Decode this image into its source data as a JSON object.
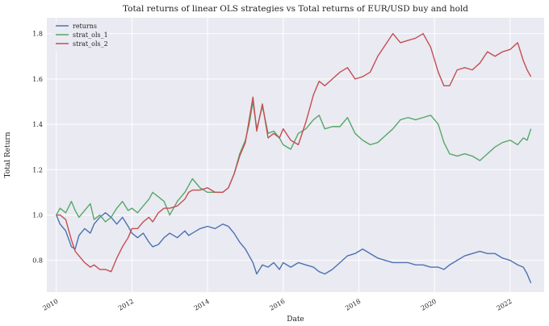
{
  "chart_data": {
    "type": "line",
    "title": "Total returns of linear OLS strategies vs Total returns of EUR/USD buy and hold",
    "xlabel": "Date",
    "ylabel": "Total Return",
    "xlim": [
      2009.75,
      2022.9
    ],
    "ylim": [
      0.66,
      1.87
    ],
    "xticks": [
      2010,
      2012,
      2014,
      2016,
      2018,
      2020,
      2022
    ],
    "xtick_labels": [
      "2010",
      "2012",
      "2014",
      "2016",
      "2018",
      "2020",
      "2022"
    ],
    "yticks": [
      0.8,
      1.0,
      1.2,
      1.4,
      1.6,
      1.8
    ],
    "ytick_labels": [
      "0.8",
      "1.0",
      "1.2",
      "1.4",
      "1.6",
      "1.8"
    ],
    "grid": true,
    "legend_position": "upper-left",
    "series": [
      {
        "name": "returns",
        "color": "#4c72b0",
        "x": [
          2010.0,
          2010.1,
          2010.25,
          2010.4,
          2010.5,
          2010.6,
          2010.75,
          2010.9,
          2011.0,
          2011.15,
          2011.3,
          2011.45,
          2011.6,
          2011.75,
          2011.9,
          2012.0,
          2012.15,
          2012.3,
          2012.45,
          2012.55,
          2012.7,
          2012.85,
          2013.0,
          2013.2,
          2013.4,
          2013.5,
          2013.6,
          2013.8,
          2014.0,
          2014.2,
          2014.4,
          2014.55,
          2014.7,
          2014.85,
          2015.0,
          2015.1,
          2015.2,
          2015.3,
          2015.45,
          2015.6,
          2015.75,
          2015.9,
          2016.0,
          2016.2,
          2016.4,
          2016.6,
          2016.8,
          2016.95,
          2017.1,
          2017.3,
          2017.5,
          2017.7,
          2017.9,
          2018.1,
          2018.3,
          2018.5,
          2018.7,
          2018.9,
          2019.1,
          2019.3,
          2019.5,
          2019.7,
          2019.9,
          2020.1,
          2020.25,
          2020.4,
          2020.6,
          2020.8,
          2021.0,
          2021.2,
          2021.4,
          2021.6,
          2021.8,
          2022.0,
          2022.2,
          2022.35,
          2022.45,
          2022.55
        ],
        "y": [
          1.0,
          0.96,
          0.93,
          0.86,
          0.85,
          0.91,
          0.94,
          0.92,
          0.96,
          0.99,
          1.01,
          0.99,
          0.96,
          0.99,
          0.95,
          0.92,
          0.9,
          0.92,
          0.88,
          0.86,
          0.87,
          0.9,
          0.92,
          0.9,
          0.93,
          0.91,
          0.92,
          0.94,
          0.95,
          0.94,
          0.96,
          0.95,
          0.92,
          0.88,
          0.85,
          0.82,
          0.79,
          0.74,
          0.78,
          0.77,
          0.79,
          0.76,
          0.79,
          0.77,
          0.79,
          0.78,
          0.77,
          0.75,
          0.74,
          0.76,
          0.79,
          0.82,
          0.83,
          0.85,
          0.83,
          0.81,
          0.8,
          0.79,
          0.79,
          0.79,
          0.78,
          0.78,
          0.77,
          0.77,
          0.76,
          0.78,
          0.8,
          0.82,
          0.83,
          0.84,
          0.83,
          0.83,
          0.81,
          0.8,
          0.78,
          0.77,
          0.74,
          0.7
        ]
      },
      {
        "name": "strat_ols_1",
        "color": "#55a868",
        "x": [
          2010.0,
          2010.1,
          2010.25,
          2010.4,
          2010.5,
          2010.6,
          2010.75,
          2010.9,
          2011.0,
          2011.15,
          2011.3,
          2011.45,
          2011.6,
          2011.75,
          2011.9,
          2012.0,
          2012.15,
          2012.3,
          2012.45,
          2012.55,
          2012.7,
          2012.85,
          2013.0,
          2013.2,
          2013.4,
          2013.5,
          2013.6,
          2013.8,
          2014.0,
          2014.2,
          2014.4,
          2014.55,
          2014.7,
          2014.85,
          2015.0,
          2015.1,
          2015.2,
          2015.3,
          2015.45,
          2015.6,
          2015.75,
          2015.9,
          2016.0,
          2016.2,
          2016.4,
          2016.6,
          2016.8,
          2016.95,
          2017.1,
          2017.3,
          2017.5,
          2017.7,
          2017.9,
          2018.1,
          2018.3,
          2018.5,
          2018.7,
          2018.9,
          2019.1,
          2019.3,
          2019.5,
          2019.7,
          2019.9,
          2020.1,
          2020.25,
          2020.4,
          2020.6,
          2020.8,
          2021.0,
          2021.2,
          2021.4,
          2021.6,
          2021.8,
          2022.0,
          2022.2,
          2022.35,
          2022.45,
          2022.55
        ],
        "y": [
          1.0,
          1.03,
          1.01,
          1.06,
          1.02,
          0.99,
          1.02,
          1.05,
          0.98,
          1.0,
          0.97,
          0.99,
          1.03,
          1.06,
          1.02,
          1.03,
          1.01,
          1.04,
          1.07,
          1.1,
          1.08,
          1.06,
          1.0,
          1.06,
          1.1,
          1.13,
          1.16,
          1.12,
          1.1,
          1.1,
          1.1,
          1.12,
          1.18,
          1.27,
          1.33,
          1.4,
          1.5,
          1.38,
          1.48,
          1.36,
          1.37,
          1.34,
          1.31,
          1.29,
          1.36,
          1.38,
          1.42,
          1.44,
          1.38,
          1.39,
          1.39,
          1.43,
          1.36,
          1.33,
          1.31,
          1.32,
          1.35,
          1.38,
          1.42,
          1.43,
          1.42,
          1.43,
          1.44,
          1.4,
          1.32,
          1.27,
          1.26,
          1.27,
          1.26,
          1.24,
          1.27,
          1.3,
          1.32,
          1.33,
          1.31,
          1.34,
          1.33,
          1.38
        ]
      },
      {
        "name": "strat_ols_2",
        "color": "#c44e52",
        "x": [
          2010.0,
          2010.1,
          2010.25,
          2010.4,
          2010.5,
          2010.6,
          2010.75,
          2010.9,
          2011.0,
          2011.15,
          2011.3,
          2011.45,
          2011.6,
          2011.75,
          2011.9,
          2012.0,
          2012.15,
          2012.3,
          2012.45,
          2012.55,
          2012.7,
          2012.85,
          2013.0,
          2013.2,
          2013.4,
          2013.5,
          2013.6,
          2013.8,
          2014.0,
          2014.2,
          2014.4,
          2014.55,
          2014.7,
          2014.85,
          2015.0,
          2015.1,
          2015.2,
          2015.3,
          2015.45,
          2015.6,
          2015.75,
          2015.9,
          2016.0,
          2016.2,
          2016.4,
          2016.6,
          2016.8,
          2016.95,
          2017.1,
          2017.3,
          2017.5,
          2017.7,
          2017.9,
          2018.1,
          2018.3,
          2018.5,
          2018.7,
          2018.9,
          2019.1,
          2019.3,
          2019.5,
          2019.7,
          2019.9,
          2020.1,
          2020.25,
          2020.4,
          2020.6,
          2020.8,
          2021.0,
          2021.2,
          2021.4,
          2021.6,
          2021.8,
          2022.0,
          2022.2,
          2022.35,
          2022.45,
          2022.55
        ],
        "y": [
          1.0,
          1.0,
          0.98,
          0.89,
          0.84,
          0.82,
          0.79,
          0.77,
          0.78,
          0.76,
          0.76,
          0.75,
          0.81,
          0.86,
          0.9,
          0.94,
          0.94,
          0.97,
          0.99,
          0.97,
          1.01,
          1.03,
          1.03,
          1.04,
          1.07,
          1.1,
          1.11,
          1.11,
          1.12,
          1.1,
          1.1,
          1.12,
          1.18,
          1.26,
          1.32,
          1.42,
          1.52,
          1.37,
          1.49,
          1.34,
          1.36,
          1.34,
          1.38,
          1.33,
          1.31,
          1.41,
          1.53,
          1.59,
          1.57,
          1.6,
          1.63,
          1.65,
          1.6,
          1.61,
          1.63,
          1.7,
          1.75,
          1.8,
          1.76,
          1.77,
          1.78,
          1.8,
          1.74,
          1.63,
          1.57,
          1.57,
          1.64,
          1.65,
          1.64,
          1.67,
          1.72,
          1.7,
          1.72,
          1.73,
          1.76,
          1.68,
          1.64,
          1.61
        ]
      }
    ]
  }
}
